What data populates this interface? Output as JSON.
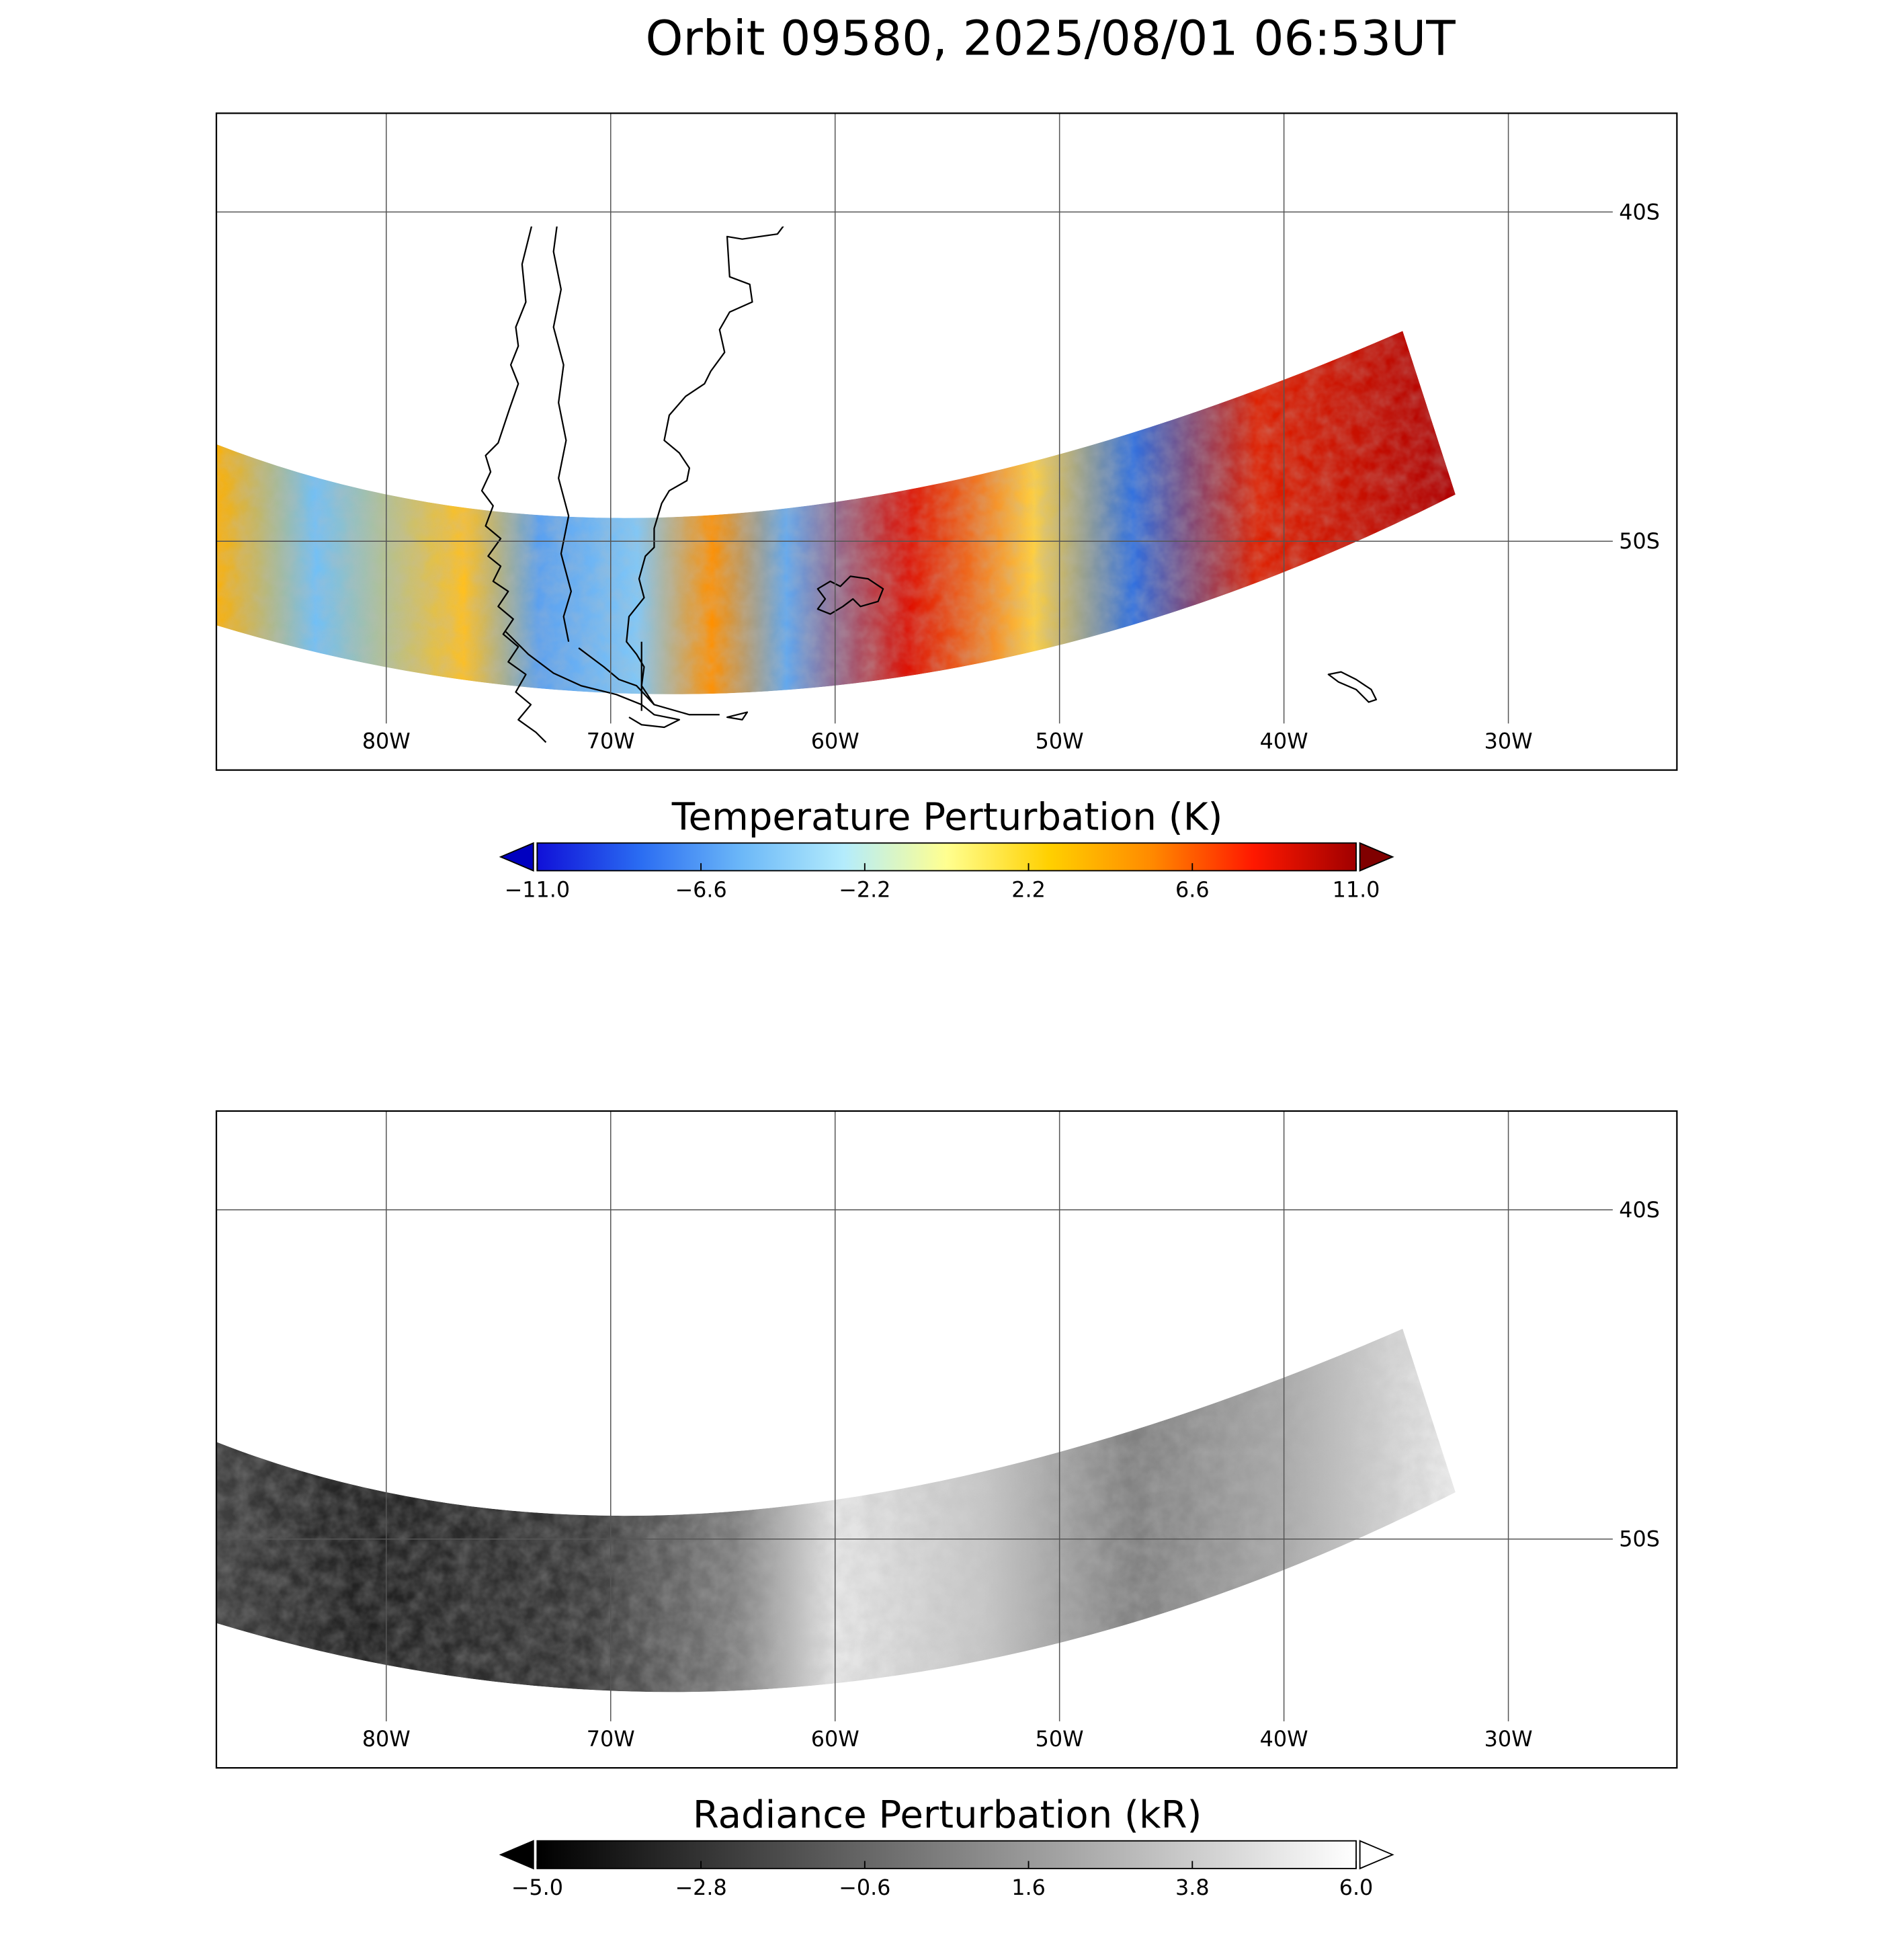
{
  "title": "Orbit 09580, 2025/08/01 06:53UT",
  "panels": [
    {
      "lonlim": [
        -87.57,
        -22.49
      ],
      "latlim": [
        -37.0,
        -56.95
      ],
      "lon_ticks": [
        {
          "value": -80,
          "label": "80W"
        },
        {
          "value": -70,
          "label": "70W"
        },
        {
          "value": -60,
          "label": "60W"
        },
        {
          "value": -50,
          "label": "50W"
        },
        {
          "value": -40,
          "label": "40W"
        },
        {
          "value": -30,
          "label": "30W"
        }
      ],
      "lat_ticks": [
        {
          "value": -40,
          "label": "40S"
        },
        {
          "value": -50,
          "label": "50S"
        }
      ],
      "colorbar": {
        "title": "Temperature Perturbation (K)",
        "lim": [
          -11,
          11
        ],
        "ticks": [
          {
            "value": -11,
            "label": "−11.0"
          },
          {
            "value": -6.6,
            "label": "−6.6"
          },
          {
            "value": -2.2,
            "label": "−2.2"
          },
          {
            "value": 2.2,
            "label": "2.2"
          },
          {
            "value": 6.6,
            "label": "6.6"
          },
          {
            "value": 11,
            "label": "11.0"
          }
        ],
        "colors": [
          "#1010d8",
          "#2a6cf2",
          "#6cb8f8",
          "#b4ecfc",
          "#ffff90",
          "#ffd000",
          "#ff8a00",
          "#ff1800",
          "#a00000"
        ],
        "under_color": "#0000c0",
        "over_color": "#800000"
      }
    },
    {
      "lonlim": [
        -87.57,
        -22.49
      ],
      "latlim": [
        -37.0,
        -56.95
      ],
      "lon_ticks": [
        {
          "value": -80,
          "label": "80W"
        },
        {
          "value": -70,
          "label": "70W"
        },
        {
          "value": -60,
          "label": "60W"
        },
        {
          "value": -50,
          "label": "50W"
        },
        {
          "value": -40,
          "label": "40W"
        },
        {
          "value": -30,
          "label": "30W"
        }
      ],
      "lat_ticks": [
        {
          "value": -40,
          "label": "40S"
        },
        {
          "value": -50,
          "label": "50S"
        }
      ],
      "colorbar": {
        "title": "Radiance Perturbation (kR)",
        "lim": [
          -5,
          6
        ],
        "ticks": [
          {
            "value": -5,
            "label": "−5.0"
          },
          {
            "value": -2.8,
            "label": "−2.8"
          },
          {
            "value": -0.6,
            "label": "−0.6"
          },
          {
            "value": 1.6,
            "label": "1.6"
          },
          {
            "value": 3.8,
            "label": "3.8"
          },
          {
            "value": 6,
            "label": "6.0"
          }
        ],
        "colors": [
          "#000000",
          "#ffffff"
        ],
        "under_color": "#000000",
        "over_color": "#ffffff"
      }
    }
  ]
}
